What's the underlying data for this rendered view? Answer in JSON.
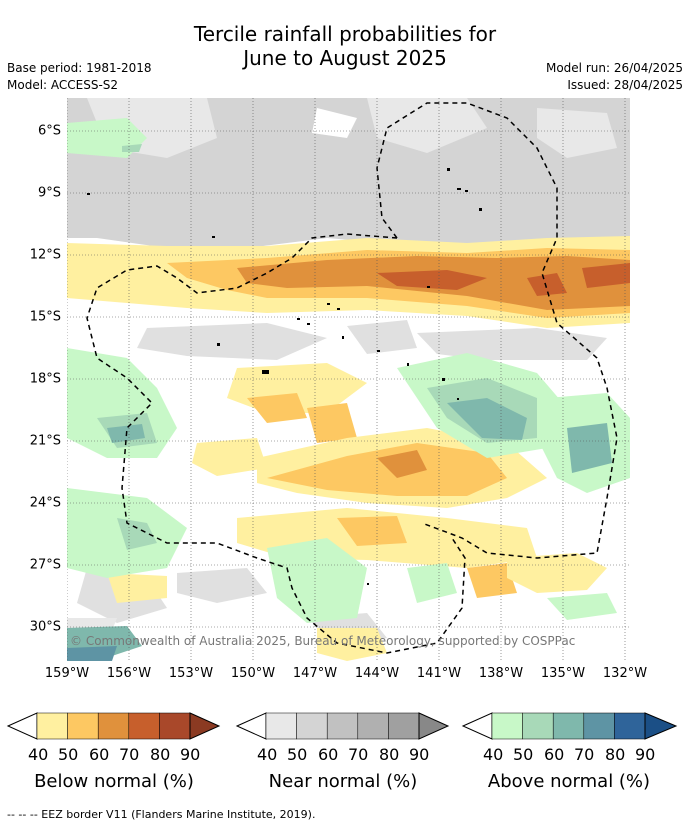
{
  "title_line1": "Tercile rainfall probabilities for",
  "title_line2": "June to August 2025",
  "meta": {
    "base_period": "Base period: 1981-2018",
    "model": "Model: ACCESS-S2",
    "model_run": "Model run: 26/04/2025",
    "issued": "Issued: 28/04/2025"
  },
  "map": {
    "lat_labels": [
      "6°S",
      "9°S",
      "12°S",
      "15°S",
      "18°S",
      "21°S",
      "24°S",
      "27°S",
      "30°S"
    ],
    "lon_labels": [
      "159°W",
      "156°W",
      "153°W",
      "150°W",
      "147°W",
      "144°W",
      "141°W",
      "138°W",
      "135°W",
      "132°W"
    ],
    "copyright": "© Commonwealth of Australia 2025, Bureau of Meteorology, supported by COSPPac",
    "grid": "dotted"
  },
  "colorbars": [
    {
      "title": "Below normal (%)",
      "ticks": [
        "40",
        "50",
        "60",
        "70",
        "80",
        "90"
      ],
      "colors": [
        "#fff0a0",
        "#fdc862",
        "#e0913c",
        "#c75f2c",
        "#a9482a"
      ]
    },
    {
      "title": "Near normal (%)",
      "ticks": [
        "40",
        "50",
        "60",
        "70",
        "80",
        "90"
      ],
      "colors": [
        "#e8e8e8",
        "#d4d4d4",
        "#c1c1c1",
        "#b0b0b0",
        "#a0a0a0"
      ]
    },
    {
      "title": "Above normal (%)",
      "ticks": [
        "40",
        "50",
        "60",
        "70",
        "80",
        "90"
      ],
      "colors": [
        "#c8f8c8",
        "#a8d9b8",
        "#7fb8ac",
        "#5e94a4",
        "#2f649a"
      ]
    }
  ],
  "footnote": "--  --  -- EEZ border V11 (Flanders Marine Institute, 2019)."
}
